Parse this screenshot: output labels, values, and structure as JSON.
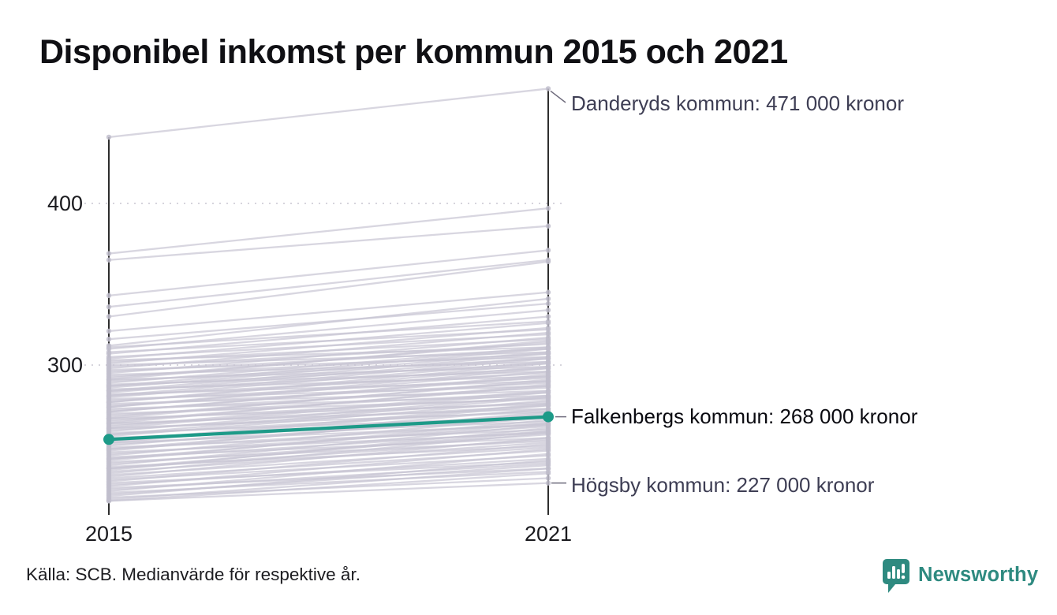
{
  "header": {
    "title": "Disponibel inkomst per kommun 2015 och 2021"
  },
  "footer": {
    "source": "Källa: SCB. Medianvärde för respektive år.",
    "brand": "Newsworthy"
  },
  "colors": {
    "highlight": "#1d9a88",
    "background_line": "#c8c5d3",
    "background_dot": "#c1becd",
    "axis": "#161616",
    "gridline": "#d6d4dc",
    "connector": "#6e6b7c",
    "annotation_muted": "#3e3e54",
    "annotation_strong": "#0a0a10",
    "brand_teal": "#2e8a80"
  },
  "chart_data": {
    "type": "line",
    "subtype": "slope-chart",
    "title": "Disponibel inkomst per kommun 2015 och 2021",
    "x_categories": [
      "2015",
      "2021"
    ],
    "y_ticks": [
      "400",
      "300"
    ],
    "y_axis_values_thousands_kronor": [
      400,
      300
    ],
    "axis_range_thousands": [
      207,
      471
    ],
    "grid": "dotted horizontal lines at ticks",
    "legend": "none",
    "annotations": [
      {
        "text": "Danderyds kommun: 471 000 kronor",
        "municipality": "Danderyds kommun",
        "year": "2021",
        "value_thousands": 471,
        "highlighted": false
      },
      {
        "text": "Falkenbergs kommun: 268 000 kronor",
        "municipality": "Falkenbergs kommun",
        "year": "2021",
        "value_thousands": 268,
        "highlighted": true
      },
      {
        "text": "Högsby kommun: 227 000 kronor",
        "municipality": "Högsby kommun",
        "year": "2021",
        "value_thousands": 227,
        "highlighted": false
      }
    ],
    "highlight_series": {
      "name": "Falkenbergs kommun",
      "values_2015_2021": [
        254,
        268
      ]
    },
    "labeled_gray_series": [
      {
        "name": "Danderyds kommun",
        "values_2015_2021": [
          441,
          471
        ]
      },
      {
        "name": "Högsby kommun",
        "values_2015_2021": [
          216,
          227
        ]
      }
    ],
    "background_pairs_2015_2021": [
      [
        216,
        233
      ],
      [
        217,
        236
      ],
      [
        218,
        230
      ],
      [
        219,
        241
      ],
      [
        220,
        238
      ],
      [
        221,
        234
      ],
      [
        222,
        245
      ],
      [
        223,
        239
      ],
      [
        224,
        236
      ],
      [
        225,
        248
      ],
      [
        226,
        242
      ],
      [
        227,
        240
      ],
      [
        228,
        251
      ],
      [
        229,
        244
      ],
      [
        230,
        247
      ],
      [
        231,
        255
      ],
      [
        232,
        249
      ],
      [
        233,
        258
      ],
      [
        234,
        252
      ],
      [
        235,
        261
      ],
      [
        236,
        254
      ],
      [
        237,
        250
      ],
      [
        238,
        263
      ],
      [
        239,
        257
      ],
      [
        240,
        253
      ],
      [
        241,
        266
      ],
      [
        242,
        259
      ],
      [
        243,
        255
      ],
      [
        244,
        268
      ],
      [
        245,
        262
      ],
      [
        246,
        258
      ],
      [
        247,
        271
      ],
      [
        248,
        264
      ],
      [
        249,
        260
      ],
      [
        250,
        273
      ],
      [
        251,
        267
      ],
      [
        252,
        263
      ],
      [
        253,
        276
      ],
      [
        254,
        269
      ],
      [
        255,
        265
      ],
      [
        256,
        278
      ],
      [
        257,
        272
      ],
      [
        258,
        268
      ],
      [
        259,
        281
      ],
      [
        260,
        275
      ],
      [
        261,
        271
      ],
      [
        262,
        284
      ],
      [
        263,
        277
      ],
      [
        264,
        273
      ],
      [
        265,
        287
      ],
      [
        266,
        280
      ],
      [
        267,
        276
      ],
      [
        268,
        290
      ],
      [
        269,
        283
      ],
      [
        270,
        279
      ],
      [
        271,
        293
      ],
      [
        272,
        286
      ],
      [
        273,
        281
      ],
      [
        274,
        296
      ],
      [
        275,
        289
      ],
      [
        276,
        284
      ],
      [
        277,
        299
      ],
      [
        278,
        292
      ],
      [
        279,
        287
      ],
      [
        280,
        302
      ],
      [
        281,
        295
      ],
      [
        282,
        290
      ],
      [
        283,
        305
      ],
      [
        284,
        298
      ],
      [
        285,
        293
      ],
      [
        286,
        308
      ],
      [
        287,
        301
      ],
      [
        288,
        296
      ],
      [
        289,
        311
      ],
      [
        290,
        304
      ],
      [
        291,
        299
      ],
      [
        292,
        314
      ],
      [
        293,
        307
      ],
      [
        294,
        302
      ],
      [
        295,
        317
      ],
      [
        296,
        310
      ],
      [
        297,
        305
      ],
      [
        298,
        320
      ],
      [
        299,
        313
      ],
      [
        300,
        308
      ],
      [
        301,
        323
      ],
      [
        302,
        316
      ],
      [
        303,
        311
      ],
      [
        304,
        326
      ],
      [
        305,
        319
      ],
      [
        307,
        330
      ],
      [
        308,
        322
      ],
      [
        310,
        334
      ],
      [
        311,
        327
      ],
      [
        236,
        259
      ],
      [
        242,
        264
      ],
      [
        248,
        270
      ],
      [
        252,
        275
      ],
      [
        257,
        280
      ],
      [
        261,
        283
      ],
      [
        264,
        288
      ],
      [
        267,
        291
      ],
      [
        271,
        294
      ],
      [
        274,
        298
      ],
      [
        277,
        301
      ],
      [
        281,
        304
      ],
      [
        284,
        307
      ],
      [
        287,
        310
      ],
      [
        291,
        315
      ],
      [
        312,
        341
      ],
      [
        316,
        338
      ],
      [
        321,
        345
      ],
      [
        330,
        364
      ],
      [
        336,
        365
      ],
      [
        343,
        371
      ],
      [
        365,
        386
      ],
      [
        369,
        397
      ]
    ]
  }
}
